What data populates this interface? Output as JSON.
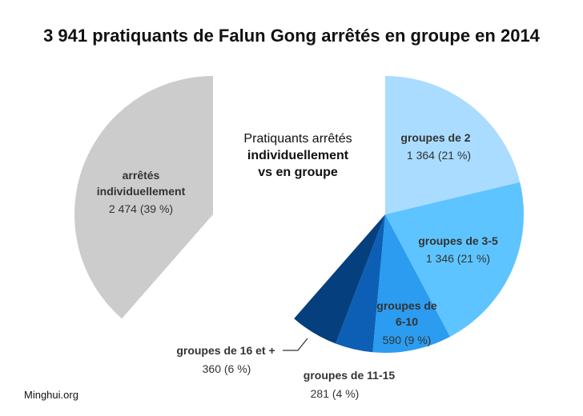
{
  "chart_data": {
    "type": "pie",
    "title": "3 941 pratiquants de Falun Gong arrêtés en groupe en 2014",
    "center_text": [
      "Pratiquants arrêtés",
      "individuellement",
      "vs en groupe"
    ],
    "source": "Minghui.org",
    "left_pie": {
      "slices": [
        {
          "name": [
            "arrêtés",
            "individuellement"
          ],
          "value": 2474,
          "value_text": "2 474 (39 %)",
          "color": "#cccccc"
        }
      ]
    },
    "right_pie": {
      "slices": [
        {
          "name": [
            "groupes de 2"
          ],
          "value": 1364,
          "value_text": "1 364 (21 %)",
          "color": "#a9dcff"
        },
        {
          "name": [
            "groupes de 3-5"
          ],
          "value": 1346,
          "value_text": "1 346 (21 %)",
          "color": "#5ec4ff"
        },
        {
          "name": [
            "groupes de",
            "6-10"
          ],
          "value": 590,
          "value_text": "590 (9 %)",
          "color": "#2b9cf0"
        },
        {
          "name": [
            "groupes de 11-15"
          ],
          "value": 281,
          "value_text": "281 (4 %)",
          "color": "#0c5fb5"
        },
        {
          "name": [
            "groupes de 16 et +"
          ],
          "value": 360,
          "value_text": "360 (6 %)",
          "color": "#063f7d"
        }
      ]
    }
  }
}
